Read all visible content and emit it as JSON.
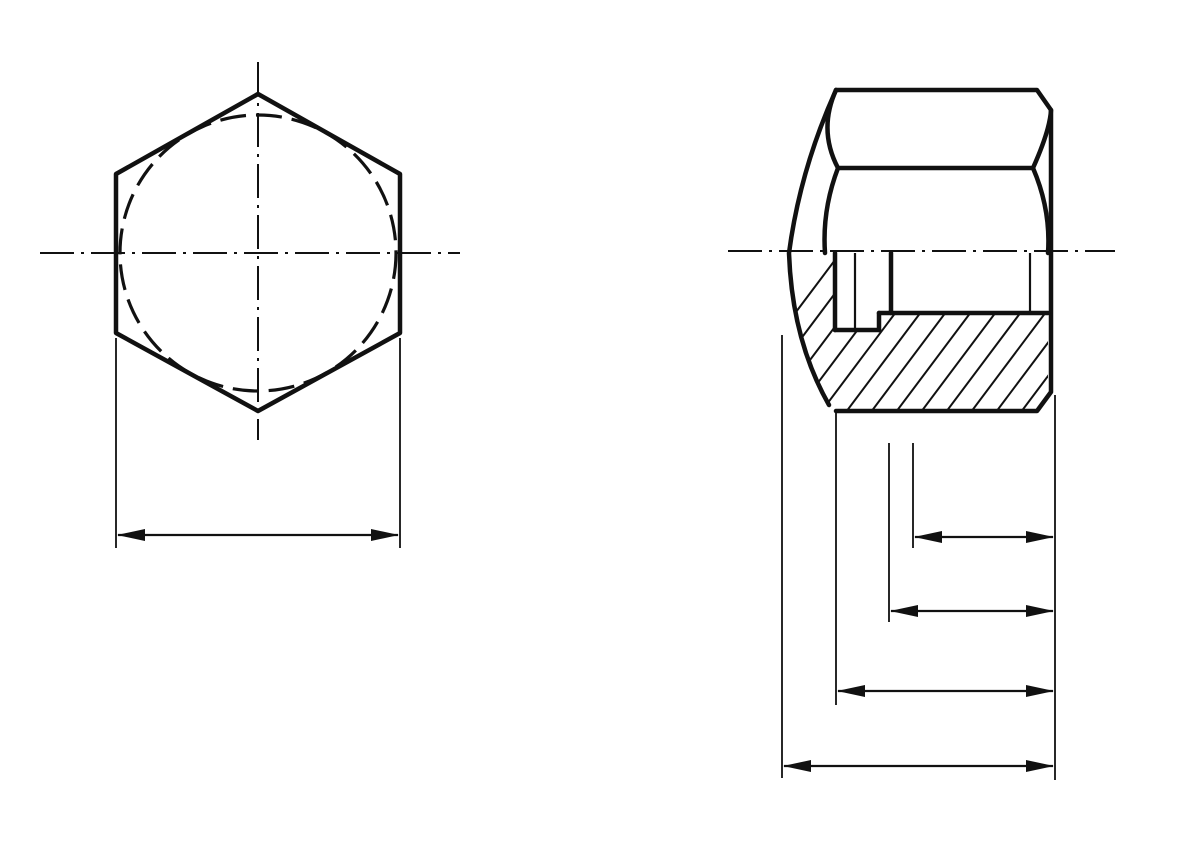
{
  "drawing": {
    "colors": {
      "ink": "#111111",
      "paper": "#ffffff"
    },
    "views": {
      "front": {
        "shape": "hexagon",
        "hidden_feature": "circle",
        "dimensions": [
          "across-flats"
        ]
      },
      "side": {
        "shape": "cap-nut-half-section",
        "dimensions": [
          "thread-depth",
          "bore-depth",
          "hex-height",
          "overall-height"
        ]
      }
    }
  }
}
